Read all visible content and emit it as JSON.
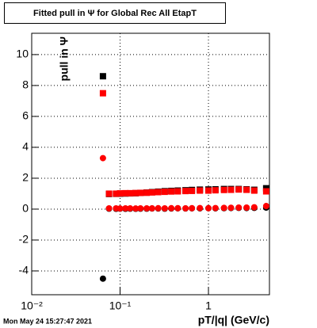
{
  "chart_data": {
    "type": "scatter",
    "title": "Fitted pull in  Ψ  for Global Rec All EtapT",
    "y_label": "pull in  Ψ",
    "x_label": "pT/|q| (GeV/c)",
    "timestamp": "Mon May 24 15:27:47 2021",
    "log_x": true,
    "grid": true,
    "xlim": [
      0.01,
      4.9
    ],
    "ylim": [
      -5.54,
      11.38
    ],
    "xticks": [
      {
        "value": 0.01,
        "label": "10⁻²"
      },
      {
        "value": 0.1,
        "label": "10⁻¹"
      },
      1
    ],
    "yticks": [
      -4,
      -2,
      0,
      2,
      4,
      6,
      8,
      10
    ],
    "x": [
      0.064,
      0.075,
      0.09,
      0.1,
      0.115,
      0.13,
      0.15,
      0.17,
      0.2,
      0.23,
      0.27,
      0.32,
      0.38,
      0.45,
      0.55,
      0.65,
      0.8,
      1.0,
      1.2,
      1.5,
      1.8,
      2.2,
      2.7,
      3.3,
      4.5
    ],
    "series": [
      {
        "color": "#000000",
        "marker": "square",
        "values": [
          8.6,
          0.98,
          0.99,
          1.0,
          1.01,
          1.02,
          1.03,
          1.05,
          1.07,
          1.1,
          1.13,
          1.16,
          1.18,
          1.2,
          1.22,
          1.24,
          1.26,
          1.27,
          1.28,
          1.3,
          1.3,
          1.3,
          1.28,
          1.25,
          1.35
        ]
      },
      {
        "color": "#ff0000",
        "marker": "square",
        "values": [
          7.5,
          1.0,
          1.0,
          1.02,
          1.03,
          1.03,
          1.04,
          1.05,
          1.06,
          1.08,
          1.1,
          1.12,
          1.14,
          1.15,
          1.17,
          1.18,
          1.2,
          1.2,
          1.22,
          1.24,
          1.25,
          1.27,
          1.25,
          1.2,
          1.15
        ]
      },
      {
        "color": "#000000",
        "marker": "circle",
        "values": [
          -4.5,
          0.03,
          0.02,
          0.03,
          0.02,
          0.03,
          0.02,
          0.03,
          0.03,
          0.04,
          0.04,
          0.03,
          0.04,
          0.05,
          0.04,
          0.05,
          0.05,
          0.06,
          0.05,
          0.06,
          0.07,
          0.08,
          0.07,
          0.08,
          0.1
        ]
      },
      {
        "color": "#ff0000",
        "marker": "circle",
        "values": [
          3.3,
          0.05,
          0.05,
          0.04,
          0.05,
          0.05,
          0.04,
          0.05,
          0.05,
          0.05,
          0.06,
          0.05,
          0.06,
          0.06,
          0.05,
          0.06,
          0.07,
          0.06,
          0.07,
          0.08,
          0.09,
          0.1,
          0.1,
          0.12,
          0.2
        ]
      }
    ]
  }
}
